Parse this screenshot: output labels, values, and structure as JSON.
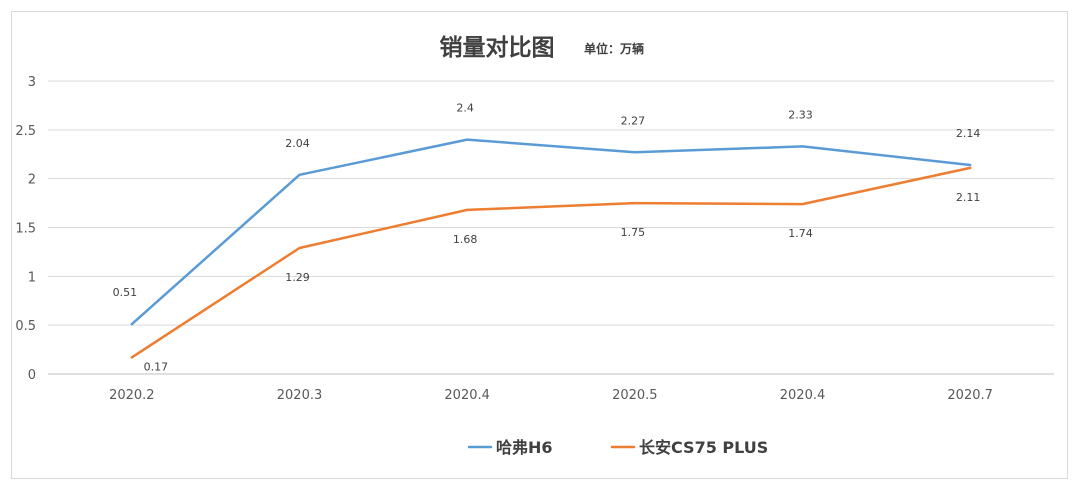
{
  "chart_data": {
    "type": "line",
    "title": "销量对比图",
    "unit_label": "单位：万辆",
    "categories": [
      "2020.2",
      "2020.3",
      "2020.4",
      "2020.5",
      "2020.4",
      "2020.7"
    ],
    "series": [
      {
        "name": "哈弗H6",
        "color": "#5b9bd5",
        "values": [
          0.51,
          2.04,
          2.4,
          2.27,
          2.33,
          2.14
        ],
        "label_position": "above"
      },
      {
        "name": "长安CS75 PLUS",
        "color": "#ed7d31",
        "values": [
          0.17,
          1.29,
          1.68,
          1.75,
          1.74,
          2.11
        ],
        "label_position": "below"
      }
    ],
    "ylim": [
      0,
      3
    ],
    "yticks": [
      0,
      0.5,
      1,
      1.5,
      2,
      2.5,
      3
    ],
    "ytick_labels": [
      "0",
      "0.5",
      "1",
      "1.5",
      "2",
      "2.5",
      "3"
    ],
    "grid": true,
    "legend": "bottom-center",
    "xlabel": "",
    "ylabel": ""
  }
}
